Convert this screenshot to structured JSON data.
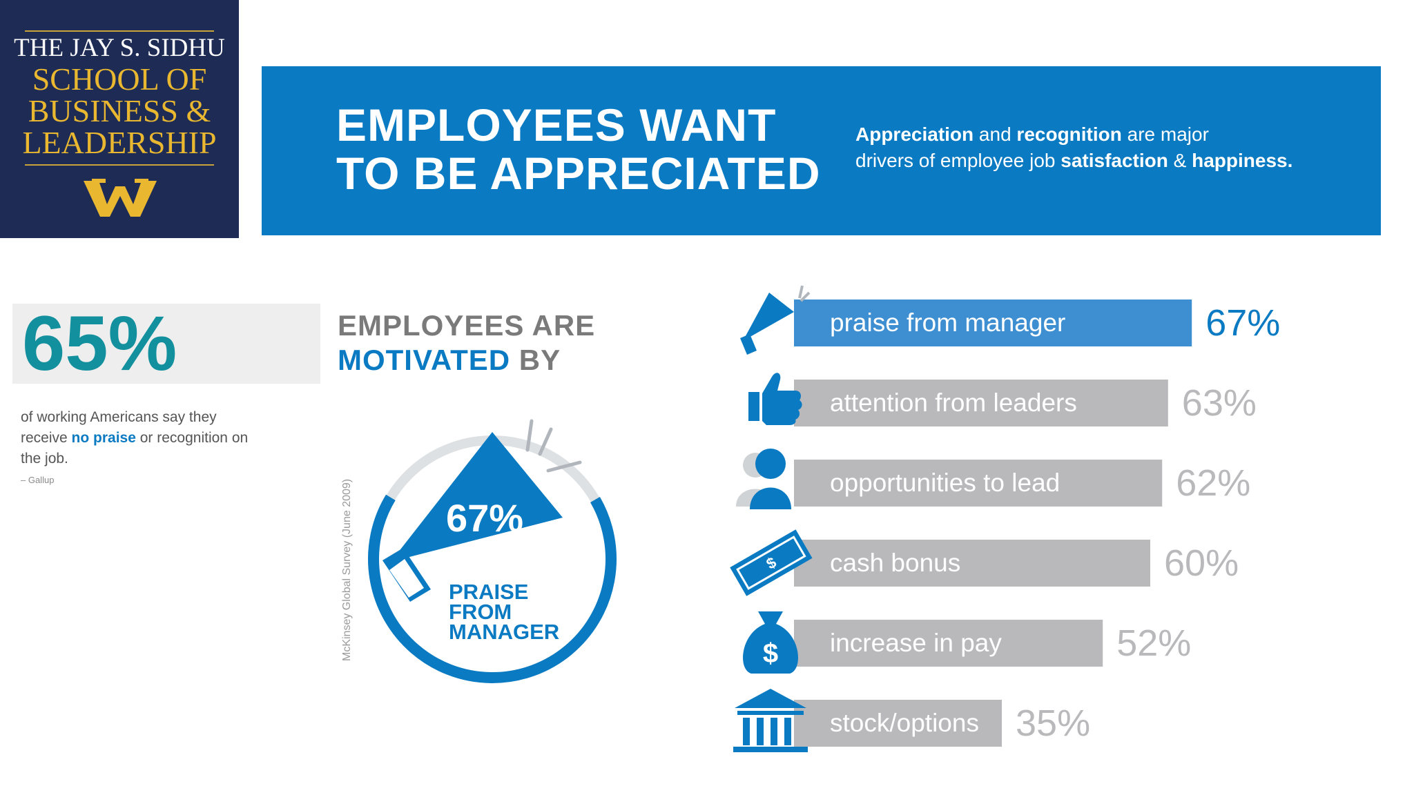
{
  "logo": {
    "line1": "THE JAY S. SIDHU",
    "line2": "SCHOOL OF",
    "line3": "BUSINESS &",
    "line4": "LEADERSHIP",
    "emblem": "W"
  },
  "banner": {
    "title_line1": "EMPLOYEES WANT",
    "title_line2": "TO BE APPRECIATED",
    "sub_appreciation": "Appreciation",
    "sub_and": " and ",
    "sub_recognition": "recognition",
    "sub_are_major": " are major",
    "sub_drivers": "drivers of employee job ",
    "sub_satisfaction": "satisfaction",
    "sub_amp": " & ",
    "sub_happiness": "happiness."
  },
  "stat": {
    "value": "65%",
    "caption_pre": "of working Americans say they receive ",
    "caption_highlight": "no praise",
    "caption_post": " or recognition on the job.",
    "source": "– Gallup"
  },
  "motivated": {
    "heading_line1": "EMPLOYEES ARE",
    "heading_line2_a": "MOTIVATED",
    "heading_line2_b": " BY",
    "survey_note": "McKinsey Global Survey (June 2009)"
  },
  "donut": {
    "value_label": "67%",
    "value": 67,
    "caption_line1": "PRAISE",
    "caption_line2": "FROM",
    "caption_line3": "MANAGER"
  },
  "colors": {
    "blue": "#0a7ac2",
    "bar_highlight": "#3e8fd2",
    "bar_gray": "#b9b9bc",
    "track_gray": "#dde1e3",
    "teal": "#13909e",
    "navy": "#1d2b55",
    "gold": "#e9b730"
  },
  "chart_data": {
    "type": "bar",
    "orientation": "horizontal",
    "categories": [
      "praise from manager",
      "attention from leaders",
      "opportunities to lead",
      "cash bonus",
      "increase in pay",
      "stock/options"
    ],
    "values": [
      67,
      63,
      62,
      60,
      52,
      35
    ],
    "value_labels": [
      "67%",
      "63%",
      "62%",
      "60%",
      "52%",
      "35%"
    ],
    "icons": [
      "megaphone-icon",
      "thumbs-up-icon",
      "person-icon",
      "cash-bill-icon",
      "money-bag-icon",
      "bank-icon"
    ],
    "highlight_index": 0
  }
}
